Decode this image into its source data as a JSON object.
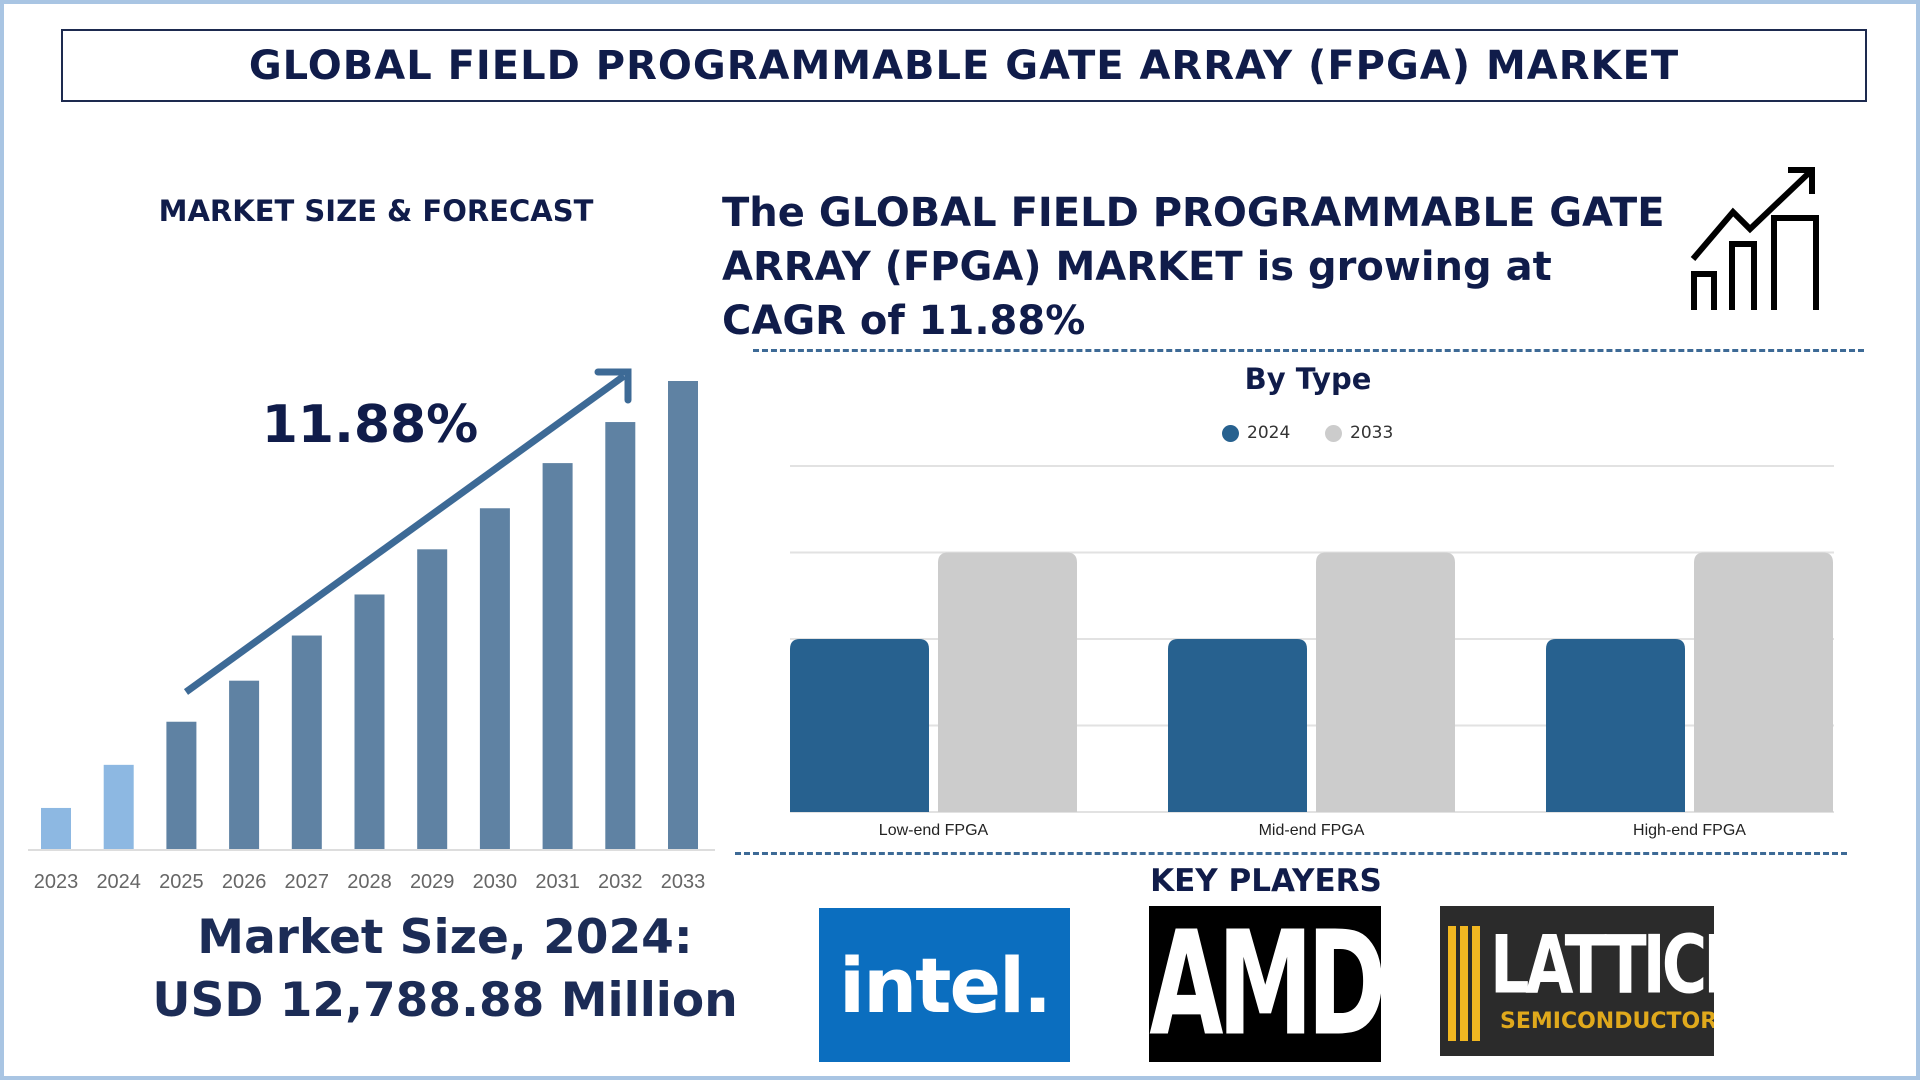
{
  "title": "GLOBAL FIELD PROGRAMMABLE GATE ARRAY (FPGA) MARKET",
  "left_panel": {
    "heading": "MARKET SIZE & FORECAST",
    "cagr_label": "11.88%",
    "market_size_line1": "Market Size, 2024:",
    "market_size_line2": "USD 12,788.88 Million"
  },
  "headline": "The GLOBAL FIELD PROGRAMMABLE GATE ARRAY (FPGA) MARKET is growing at CAGR of 11.88%",
  "headline_icon": "growth-chart-arrow-icon",
  "key_players": {
    "heading": "KEY PLAYERS",
    "logos": [
      {
        "name": "intel",
        "text": "intel."
      },
      {
        "name": "AMD",
        "text": "AMD"
      },
      {
        "name": "Lattice Semiconductor",
        "text": "LATTICE",
        "subtext": "SEMICONDUCTOR."
      }
    ]
  },
  "colors": {
    "navy": "#101c4a",
    "bar_historic": "#8db8e2",
    "bar_forecast": "#5f82a3",
    "arrow": "#3d6a96",
    "series_2024": "#27618f",
    "series_2033": "#cccccc"
  },
  "chart_data": [
    {
      "type": "bar",
      "title": "",
      "categories": [
        "2023",
        "2024",
        "2025",
        "2026",
        "2027",
        "2028",
        "2029",
        "2030",
        "2031",
        "2032",
        "2033"
      ],
      "values": [
        1,
        2.05,
        3.1,
        4.1,
        5.2,
        6.2,
        7.3,
        8.3,
        9.4,
        10.4,
        11.4
      ],
      "historic_count": 2,
      "ylim": [
        0,
        12
      ],
      "grid": false,
      "annotation": "11.88%"
    },
    {
      "type": "bar",
      "title": "By Type",
      "categories": [
        "Low-end FPGA",
        "Mid-end FPGA",
        "High-end FPGA"
      ],
      "series": [
        {
          "name": "2024",
          "values": [
            2,
            2,
            2
          ]
        },
        {
          "name": "2033",
          "values": [
            3,
            3,
            3
          ]
        }
      ],
      "ylim": [
        0,
        4
      ],
      "grid": true,
      "legend": "top-center"
    }
  ]
}
